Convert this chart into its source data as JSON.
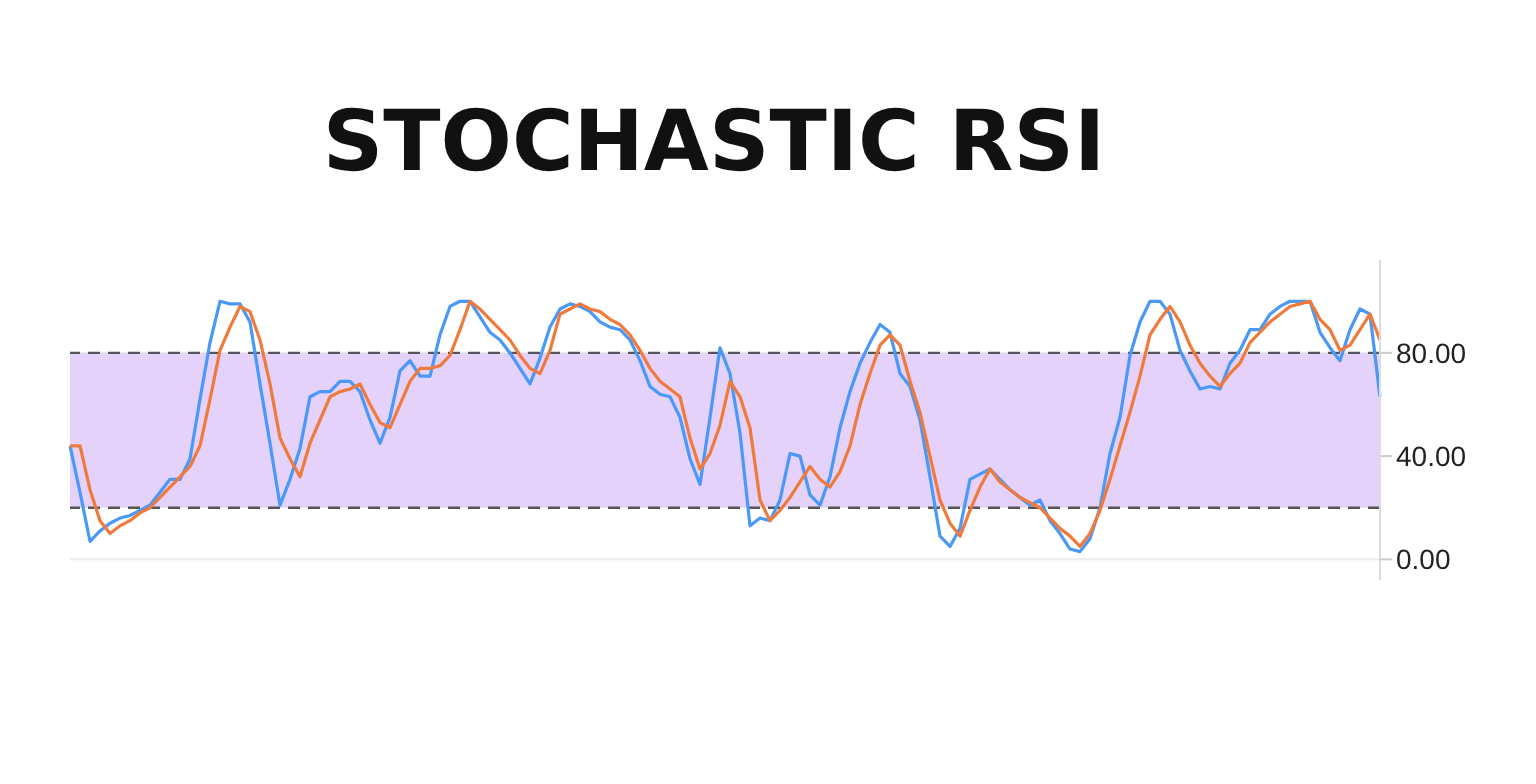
{
  "chart_data": {
    "type": "line",
    "title": "STOCHASTIC RSI",
    "categories": [
      null,
      null,
      null,
      null,
      null,
      null,
      null,
      null,
      null,
      null,
      null,
      null,
      null,
      null,
      null,
      null,
      null,
      null,
      null,
      null,
      null,
      null,
      null,
      null,
      null,
      null,
      null,
      null,
      null,
      null,
      null,
      null,
      null,
      null,
      null,
      null,
      null,
      null,
      null,
      null,
      null,
      null,
      null,
      null,
      null,
      null,
      null,
      null,
      null,
      null,
      null,
      null,
      null,
      null,
      null,
      null,
      null,
      null,
      null,
      null,
      null,
      null,
      null,
      null,
      null,
      null,
      null,
      null,
      null,
      null,
      null,
      null,
      null,
      null,
      null,
      null,
      null,
      null,
      null,
      null,
      null,
      null,
      null,
      null,
      null,
      null,
      null,
      null,
      null,
      null,
      null,
      null,
      null,
      null,
      null,
      null,
      null,
      null,
      null,
      null,
      null,
      null,
      null,
      null,
      null,
      null,
      null,
      null,
      null,
      null,
      null,
      null,
      null,
      null,
      null,
      null,
      null,
      null,
      null,
      null,
      null,
      null,
      null,
      null,
      null,
      null,
      null,
      null,
      null,
      null,
      null,
      null
    ],
    "ylim": [
      -8,
      116
    ],
    "yticks": [
      {
        "value": 0,
        "label": "0.00"
      },
      {
        "value": 40,
        "label": "40.00"
      },
      {
        "value": 80,
        "label": "80.00"
      }
    ],
    "tick_labels": "y",
    "grid": "y",
    "line_style": "solid",
    "bands": [
      {
        "axis": "y",
        "from": 20,
        "to": 80,
        "color": "#e4d2fb"
      }
    ],
    "ref_lines": [
      {
        "axis": "y",
        "value": 80,
        "color": "#555555",
        "line_style": "dashed"
      },
      {
        "axis": "y",
        "value": 20,
        "color": "#555555",
        "line_style": "dashed"
      }
    ],
    "series": [
      {
        "color": "#4a98f7",
        "values": [
          44,
          26,
          7,
          11,
          14,
          16,
          17,
          19,
          21,
          26,
          31,
          31,
          39,
          62,
          84,
          100,
          99,
          99,
          92,
          68,
          45,
          21,
          31,
          43,
          63,
          65,
          65,
          69,
          69,
          65,
          54,
          45,
          55,
          73,
          77,
          71,
          71,
          87,
          98,
          100,
          100,
          94,
          88,
          85,
          80,
          74,
          68,
          78,
          90,
          97,
          99,
          98,
          96,
          92,
          90,
          89,
          85,
          77,
          67,
          64,
          63,
          55,
          39,
          29,
          55,
          82,
          72,
          49,
          13,
          16,
          15,
          23,
          41,
          40,
          25,
          21,
          32,
          51,
          65,
          76,
          84,
          91,
          88,
          72,
          67,
          54,
          32,
          9,
          5,
          12,
          31,
          33,
          35,
          31,
          27,
          24,
          21,
          23,
          15,
          10,
          4,
          3,
          8,
          20,
          41,
          55,
          79,
          92,
          100,
          100,
          95,
          81,
          73,
          66,
          67,
          66,
          76,
          81,
          89,
          89,
          95,
          98,
          100,
          100,
          100,
          88,
          82,
          77,
          89,
          97,
          95,
          63
        ]
      },
      {
        "color": "#f07a3c",
        "values": [
          44,
          44,
          27,
          15,
          10,
          13,
          15,
          18,
          20,
          24,
          28,
          32,
          36,
          44,
          62,
          81,
          90,
          98,
          96,
          85,
          68,
          47,
          39,
          32,
          45,
          54,
          63,
          65,
          66,
          68,
          60,
          53,
          51,
          60,
          69,
          74,
          74,
          75,
          79,
          89,
          100,
          97,
          93,
          89,
          85,
          79,
          74,
          72,
          81,
          95,
          97,
          99,
          97,
          96,
          93,
          91,
          87,
          81,
          74,
          69,
          66,
          63,
          47,
          35,
          41,
          52,
          69,
          63,
          51,
          23,
          15,
          19,
          24,
          30,
          36,
          31,
          28,
          34,
          44,
          60,
          72,
          83,
          87,
          83,
          69,
          57,
          40,
          23,
          14,
          9,
          19,
          28,
          35,
          30,
          27,
          24,
          22,
          20,
          16,
          12,
          9,
          5,
          10,
          19,
          31,
          44,
          57,
          71,
          87,
          93,
          98,
          92,
          83,
          76,
          71,
          67,
          72,
          76,
          84,
          88,
          92,
          95,
          98,
          99,
          100,
          93,
          89,
          81,
          83,
          89,
          95,
          85
        ]
      }
    ]
  }
}
